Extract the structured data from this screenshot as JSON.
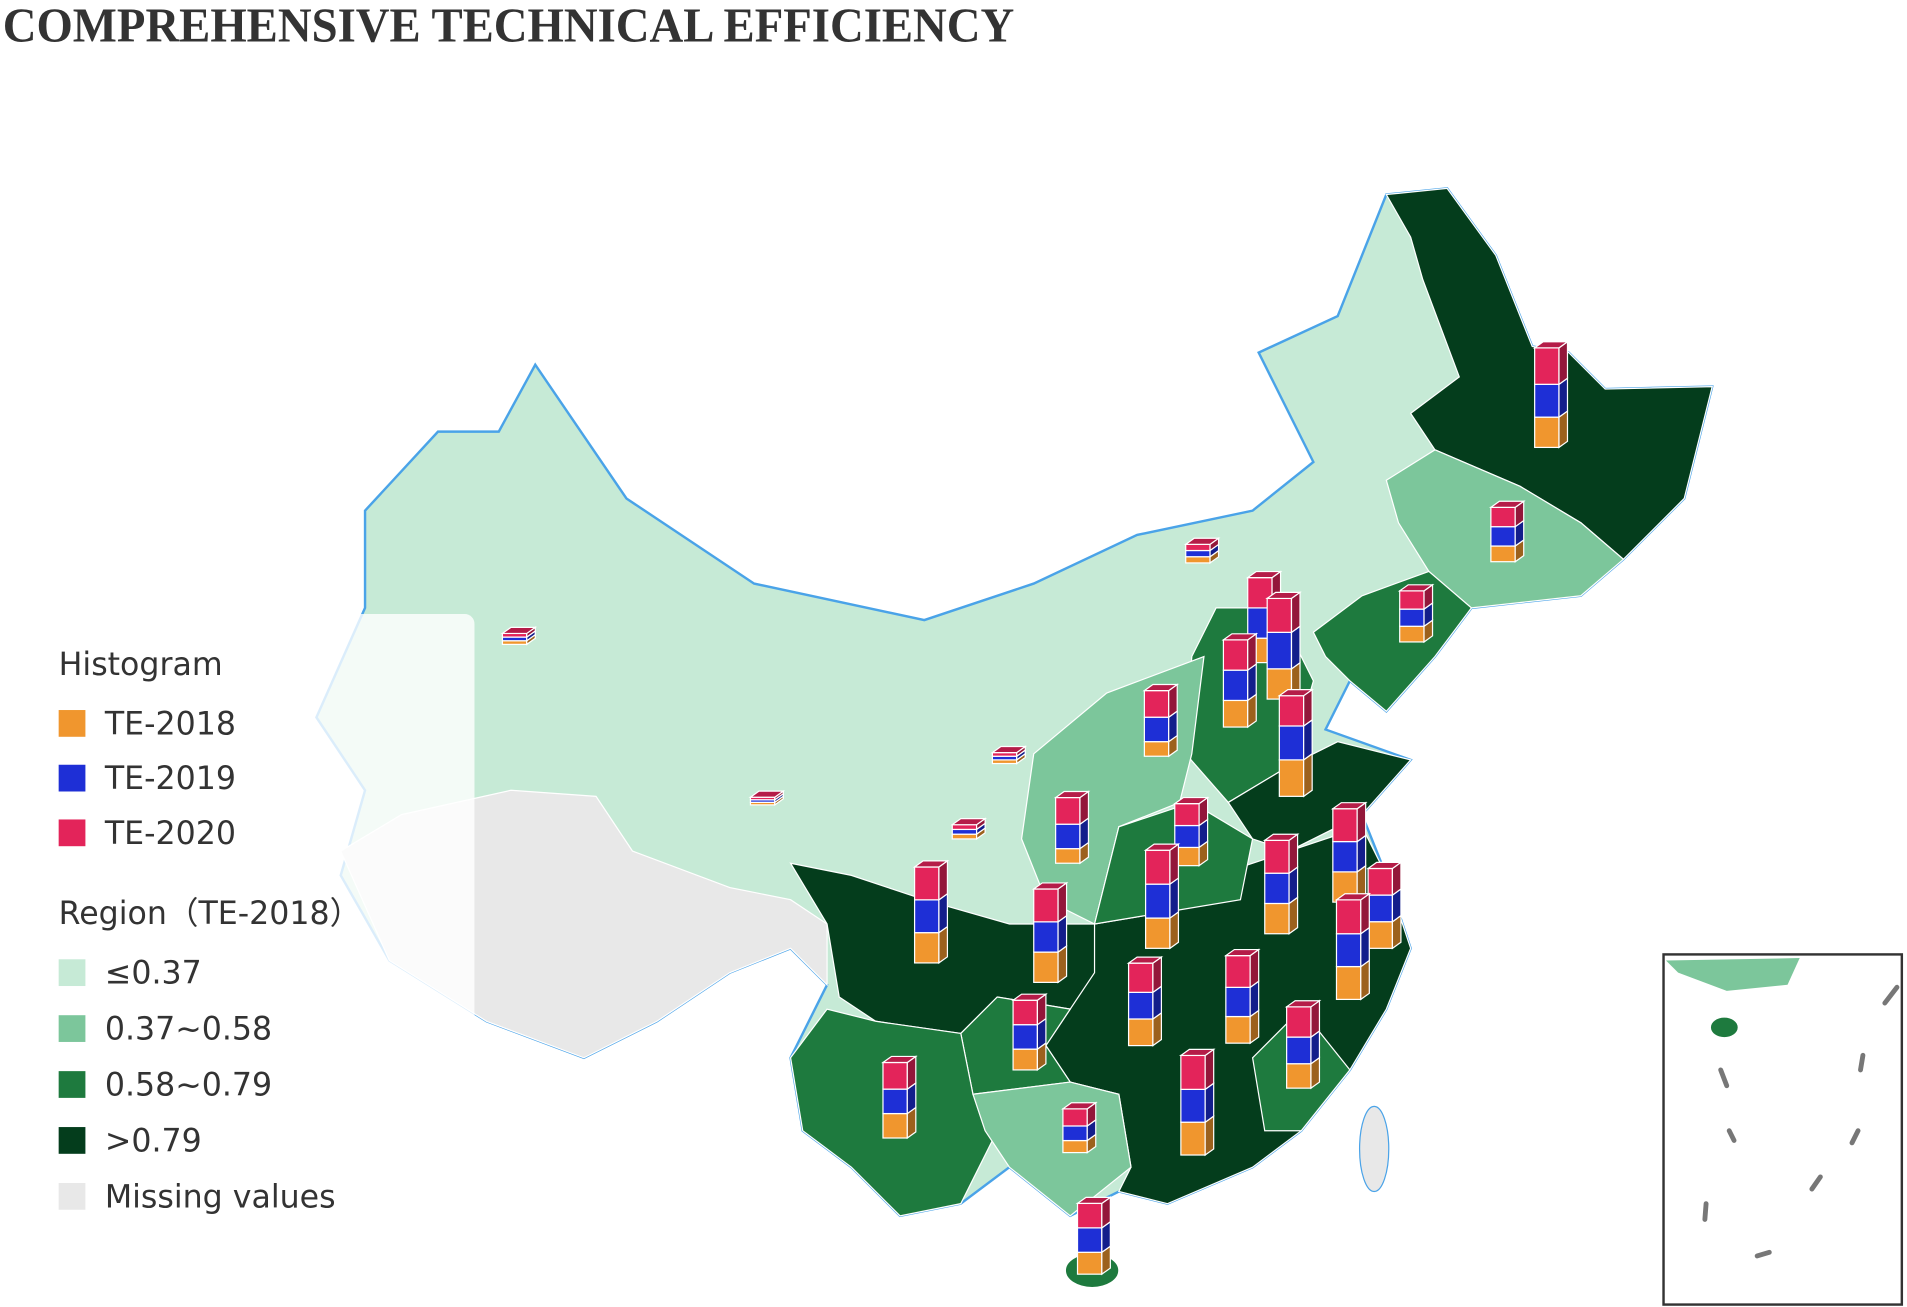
{
  "title": "COMPREHENSIVE TECHNICAL EFFICIENCY",
  "chart_data": {
    "type": "map",
    "legend_title": "Histogram",
    "series": [
      {
        "name": "TE-2018",
        "color": "#f0962e",
        "values": [
          0.83,
          0.43,
          0.17,
          0.43,
          0.1,
          0.67,
          0.83,
          0.73,
          0.4,
          1.0,
          0.1,
          0.07,
          0.13,
          0.4,
          0.5,
          0.83,
          0.83,
          0.73,
          0.83,
          0.83,
          0.83,
          0.9,
          0.73,
          0.73,
          0.57,
          0.67,
          0.67,
          0.33,
          0.9,
          0.6
        ]
      },
      {
        "name": "TE-2019",
        "color": "#1e2fd6",
        "values": [
          0.9,
          0.53,
          0.17,
          0.47,
          0.1,
          0.83,
          1.0,
          0.83,
          0.67,
          0.93,
          0.1,
          0.07,
          0.13,
          0.67,
          0.6,
          0.83,
          0.83,
          0.73,
          0.9,
          0.83,
          0.93,
          0.9,
          0.73,
          0.8,
          0.67,
          0.73,
          0.67,
          0.4,
          0.9,
          0.67
        ]
      },
      {
        "name": "TE-2020",
        "color": "#e3245a",
        "values": [
          1.0,
          0.53,
          0.17,
          0.5,
          0.1,
          0.83,
          0.93,
          0.83,
          0.73,
          0.83,
          0.1,
          0.07,
          0.13,
          0.73,
          0.6,
          0.9,
          0.9,
          0.73,
          0.9,
          0.9,
          0.93,
          0.93,
          0.8,
          0.87,
          0.67,
          0.83,
          0.73,
          0.47,
          0.93,
          0.67
        ]
      }
    ],
    "region_legend": {
      "title": "Region（TE-2018）",
      "classes": [
        {
          "label": "≤0.37",
          "color": "#c6ead6"
        },
        {
          "label": "0.37~0.58",
          "color": "#7cc69b"
        },
        {
          "label": "0.58~0.79",
          "color": "#1e7a3e"
        },
        {
          "label": ">0.79",
          "color": "#043d1c"
        },
        {
          "label": "Missing values",
          "color": "#e8e8e8"
        }
      ]
    }
  }
}
